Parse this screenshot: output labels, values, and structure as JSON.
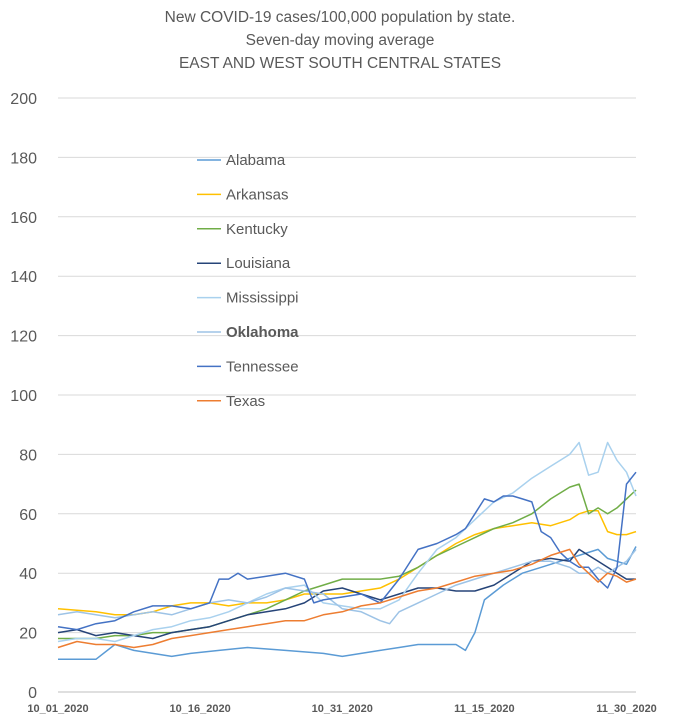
{
  "chart_data": {
    "type": "line",
    "title": "New COVID-19 cases/100,000 population by state.",
    "subtitle": "Seven-day moving average",
    "subtitle2": "EAST AND WEST SOUTH CENTRAL STATES",
    "xlabel": "",
    "ylabel": "",
    "ylim": [
      0,
      200
    ],
    "y_ticks": [
      0,
      20,
      40,
      60,
      80,
      100,
      120,
      140,
      160,
      180,
      200
    ],
    "x_tick_labels": [
      "10_01_2020",
      "10_16_2020",
      "10_31_2020",
      "11_15_2020",
      "11_30_2020"
    ],
    "x_tick_days": [
      0,
      15,
      30,
      45,
      60
    ],
    "x_range_days": [
      0,
      61
    ],
    "grid": "horizontal",
    "legend_position": "center-left",
    "series": [
      {
        "name": "Alabama",
        "color": "#5B9BD5",
        "points": [
          [
            0,
            11
          ],
          [
            4,
            11
          ],
          [
            6,
            16
          ],
          [
            8,
            14
          ],
          [
            10,
            13
          ],
          [
            12,
            12
          ],
          [
            14,
            13
          ],
          [
            17,
            14
          ],
          [
            20,
            15
          ],
          [
            24,
            14
          ],
          [
            28,
            13
          ],
          [
            30,
            12
          ],
          [
            32,
            13
          ],
          [
            34,
            14
          ],
          [
            36,
            15
          ],
          [
            38,
            16
          ],
          [
            40,
            16
          ],
          [
            42,
            16
          ],
          [
            43,
            14
          ],
          [
            44,
            20
          ],
          [
            45,
            31
          ],
          [
            47,
            36
          ],
          [
            49,
            40
          ],
          [
            51,
            42
          ],
          [
            53,
            44
          ],
          [
            55,
            46
          ],
          [
            57,
            48
          ],
          [
            58,
            45
          ],
          [
            60,
            43
          ],
          [
            61,
            49
          ]
        ]
      },
      {
        "name": "Arkansas",
        "color": "#FFC000",
        "points": [
          [
            0,
            28
          ],
          [
            4,
            27
          ],
          [
            6,
            26
          ],
          [
            8,
            26
          ],
          [
            10,
            27
          ],
          [
            12,
            29
          ],
          [
            14,
            30
          ],
          [
            16,
            30
          ],
          [
            18,
            29
          ],
          [
            20,
            30
          ],
          [
            22,
            30
          ],
          [
            24,
            31
          ],
          [
            26,
            33
          ],
          [
            28,
            33
          ],
          [
            30,
            33
          ],
          [
            32,
            34
          ],
          [
            34,
            35
          ],
          [
            36,
            38
          ],
          [
            38,
            42
          ],
          [
            40,
            46
          ],
          [
            42,
            50
          ],
          [
            44,
            53
          ],
          [
            46,
            55
          ],
          [
            48,
            56
          ],
          [
            50,
            57
          ],
          [
            52,
            56
          ],
          [
            54,
            58
          ],
          [
            55,
            60
          ],
          [
            56,
            61
          ],
          [
            57,
            61
          ],
          [
            58,
            54
          ],
          [
            59,
            53
          ],
          [
            60,
            53
          ],
          [
            61,
            54
          ]
        ]
      },
      {
        "name": "Kentucky",
        "color": "#70AD47",
        "points": [
          [
            0,
            18
          ],
          [
            4,
            18
          ],
          [
            6,
            19
          ],
          [
            8,
            19
          ],
          [
            10,
            20
          ],
          [
            12,
            20
          ],
          [
            14,
            21
          ],
          [
            16,
            22
          ],
          [
            18,
            24
          ],
          [
            20,
            26
          ],
          [
            22,
            28
          ],
          [
            24,
            31
          ],
          [
            26,
            34
          ],
          [
            28,
            36
          ],
          [
            30,
            38
          ],
          [
            32,
            38
          ],
          [
            34,
            38
          ],
          [
            36,
            39
          ],
          [
            38,
            42
          ],
          [
            40,
            46
          ],
          [
            42,
            49
          ],
          [
            44,
            52
          ],
          [
            46,
            55
          ],
          [
            48,
            57
          ],
          [
            50,
            60
          ],
          [
            52,
            65
          ],
          [
            54,
            69
          ],
          [
            55,
            70
          ],
          [
            56,
            60
          ],
          [
            57,
            62
          ],
          [
            58,
            60
          ],
          [
            59,
            62
          ],
          [
            60,
            65
          ],
          [
            61,
            68
          ]
        ]
      },
      {
        "name": "Louisiana",
        "color": "#264478",
        "points": [
          [
            0,
            20
          ],
          [
            2,
            21
          ],
          [
            4,
            19
          ],
          [
            6,
            20
          ],
          [
            8,
            19
          ],
          [
            10,
            18
          ],
          [
            12,
            20
          ],
          [
            14,
            21
          ],
          [
            16,
            22
          ],
          [
            18,
            24
          ],
          [
            20,
            26
          ],
          [
            22,
            27
          ],
          [
            24,
            28
          ],
          [
            26,
            30
          ],
          [
            28,
            34
          ],
          [
            30,
            35
          ],
          [
            32,
            33
          ],
          [
            34,
            31
          ],
          [
            36,
            33
          ],
          [
            38,
            35
          ],
          [
            40,
            35
          ],
          [
            42,
            34
          ],
          [
            44,
            34
          ],
          [
            46,
            36
          ],
          [
            48,
            40
          ],
          [
            50,
            44
          ],
          [
            52,
            45
          ],
          [
            54,
            44
          ],
          [
            55,
            48
          ],
          [
            56,
            46
          ],
          [
            57,
            44
          ],
          [
            58,
            42
          ],
          [
            59,
            40
          ],
          [
            60,
            38
          ],
          [
            61,
            38
          ]
        ]
      },
      {
        "name": "Mississippi",
        "color": "#A9D1EE",
        "points": [
          [
            0,
            17
          ],
          [
            2,
            18
          ],
          [
            4,
            18
          ],
          [
            6,
            17
          ],
          [
            8,
            19
          ],
          [
            10,
            21
          ],
          [
            12,
            22
          ],
          [
            14,
            24
          ],
          [
            16,
            25
          ],
          [
            18,
            27
          ],
          [
            20,
            30
          ],
          [
            22,
            33
          ],
          [
            24,
            35
          ],
          [
            26,
            36
          ],
          [
            28,
            30
          ],
          [
            30,
            29
          ],
          [
            32,
            28
          ],
          [
            34,
            28
          ],
          [
            36,
            31
          ],
          [
            38,
            40
          ],
          [
            40,
            48
          ],
          [
            42,
            52
          ],
          [
            44,
            58
          ],
          [
            46,
            64
          ],
          [
            48,
            67
          ],
          [
            50,
            72
          ],
          [
            52,
            76
          ],
          [
            54,
            80
          ],
          [
            55,
            84
          ],
          [
            56,
            73
          ],
          [
            57,
            74
          ],
          [
            58,
            84
          ],
          [
            59,
            78
          ],
          [
            60,
            74
          ],
          [
            61,
            66
          ]
        ]
      },
      {
        "name": "Oklahoma",
        "color": "#9DC3E6",
        "points": [
          [
            0,
            26
          ],
          [
            2,
            27
          ],
          [
            4,
            26
          ],
          [
            6,
            25
          ],
          [
            8,
            26
          ],
          [
            10,
            27
          ],
          [
            12,
            26
          ],
          [
            14,
            28
          ],
          [
            16,
            30
          ],
          [
            18,
            31
          ],
          [
            20,
            30
          ],
          [
            22,
            32
          ],
          [
            24,
            35
          ],
          [
            26,
            34
          ],
          [
            28,
            33
          ],
          [
            30,
            28
          ],
          [
            32,
            27
          ],
          [
            34,
            24
          ],
          [
            35,
            23
          ],
          [
            36,
            27
          ],
          [
            38,
            30
          ],
          [
            40,
            33
          ],
          [
            42,
            36
          ],
          [
            44,
            38
          ],
          [
            46,
            40
          ],
          [
            48,
            42
          ],
          [
            50,
            44
          ],
          [
            52,
            44
          ],
          [
            54,
            42
          ],
          [
            55,
            40
          ],
          [
            56,
            40
          ],
          [
            57,
            42
          ],
          [
            58,
            40
          ],
          [
            59,
            42
          ],
          [
            60,
            44
          ],
          [
            61,
            48
          ]
        ]
      },
      {
        "name": "Tennessee",
        "color": "#4472C4",
        "points": [
          [
            0,
            22
          ],
          [
            2,
            21
          ],
          [
            4,
            23
          ],
          [
            6,
            24
          ],
          [
            8,
            27
          ],
          [
            10,
            29
          ],
          [
            12,
            29
          ],
          [
            14,
            28
          ],
          [
            16,
            30
          ],
          [
            17,
            38
          ],
          [
            18,
            38
          ],
          [
            19,
            40
          ],
          [
            20,
            38
          ],
          [
            22,
            39
          ],
          [
            24,
            40
          ],
          [
            26,
            38
          ],
          [
            27,
            30
          ],
          [
            28,
            31
          ],
          [
            30,
            32
          ],
          [
            32,
            33
          ],
          [
            34,
            30
          ],
          [
            36,
            38
          ],
          [
            38,
            48
          ],
          [
            40,
            50
          ],
          [
            42,
            53
          ],
          [
            43,
            55
          ],
          [
            44,
            60
          ],
          [
            45,
            65
          ],
          [
            46,
            64
          ],
          [
            47,
            66
          ],
          [
            48,
            66
          ],
          [
            49,
            65
          ],
          [
            50,
            64
          ],
          [
            51,
            54
          ],
          [
            52,
            52
          ],
          [
            53,
            47
          ],
          [
            54,
            44
          ],
          [
            55,
            42
          ],
          [
            56,
            42
          ],
          [
            57,
            38
          ],
          [
            58,
            35
          ],
          [
            59,
            42
          ],
          [
            60,
            70
          ],
          [
            61,
            74
          ]
        ]
      },
      {
        "name": "Texas",
        "color": "#ED7D31",
        "points": [
          [
            0,
            15
          ],
          [
            2,
            17
          ],
          [
            4,
            16
          ],
          [
            6,
            16
          ],
          [
            8,
            15
          ],
          [
            10,
            16
          ],
          [
            12,
            18
          ],
          [
            14,
            19
          ],
          [
            16,
            20
          ],
          [
            18,
            21
          ],
          [
            20,
            22
          ],
          [
            22,
            23
          ],
          [
            24,
            24
          ],
          [
            26,
            24
          ],
          [
            28,
            26
          ],
          [
            30,
            27
          ],
          [
            32,
            29
          ],
          [
            34,
            30
          ],
          [
            36,
            32
          ],
          [
            38,
            34
          ],
          [
            40,
            35
          ],
          [
            42,
            37
          ],
          [
            44,
            39
          ],
          [
            46,
            40
          ],
          [
            48,
            41
          ],
          [
            50,
            43
          ],
          [
            52,
            46
          ],
          [
            54,
            48
          ],
          [
            55,
            43
          ],
          [
            56,
            40
          ],
          [
            57,
            37
          ],
          [
            58,
            40
          ],
          [
            59,
            39
          ],
          [
            60,
            37
          ],
          [
            61,
            38
          ]
        ]
      }
    ]
  }
}
